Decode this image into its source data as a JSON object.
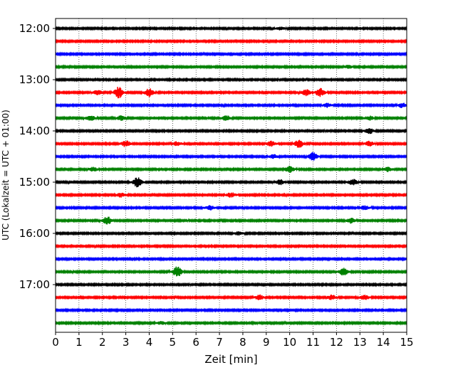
{
  "chart_data": {
    "type": "line",
    "title": "",
    "xlabel": "Zeit  [min]",
    "ylabel": "UTC (Lokalzeit = UTC + 01:00)",
    "xlim": [
      0,
      15
    ],
    "x_ticks": [
      0,
      1,
      2,
      3,
      4,
      5,
      6,
      7,
      8,
      9,
      10,
      11,
      12,
      13,
      14,
      15
    ],
    "x_tick_labels": [
      "0",
      "1",
      "2",
      "3",
      "4",
      "5",
      "6",
      "7",
      "8",
      "9",
      "10",
      "11",
      "12",
      "13",
      "14",
      "15"
    ],
    "y_ticks": [
      "12:00",
      "13:00",
      "14:00",
      "15:00",
      "16:00",
      "17:00"
    ],
    "grid": "vertical dotted",
    "legend": "none",
    "trace_colors": [
      "#000000",
      "#ff0000",
      "#0000ff",
      "#008000"
    ],
    "traces": [
      {
        "start": "12:00",
        "events": [
          [
            9.6,
            0.8
          ]
        ]
      },
      {
        "start": "12:15",
        "events": []
      },
      {
        "start": "12:30",
        "events": []
      },
      {
        "start": "12:45",
        "events": [
          [
            12.5,
            0.8
          ]
        ]
      },
      {
        "start": "13:00",
        "events": []
      },
      {
        "start": "13:15",
        "events": [
          [
            1.8,
            1.4
          ],
          [
            2.7,
            3.5
          ],
          [
            4.0,
            2.5
          ],
          [
            10.7,
            1.8
          ],
          [
            11.3,
            2.6
          ]
        ]
      },
      {
        "start": "13:30",
        "events": [
          [
            11.6,
            1.2
          ],
          [
            14.8,
            1.4
          ]
        ]
      },
      {
        "start": "13:45",
        "events": [
          [
            1.5,
            1.5
          ],
          [
            2.8,
            1.4
          ],
          [
            7.3,
            1.5
          ],
          [
            13.4,
            1.2
          ]
        ]
      },
      {
        "start": "14:00",
        "events": [
          [
            13.4,
            1.6
          ]
        ]
      },
      {
        "start": "14:15",
        "events": [
          [
            3.0,
            2.0
          ],
          [
            5.2,
            1.2
          ],
          [
            9.2,
            1.5
          ],
          [
            10.4,
            2.4
          ],
          [
            13.4,
            1.4
          ]
        ]
      },
      {
        "start": "14:30",
        "events": [
          [
            9.3,
            1.2
          ],
          [
            11.0,
            2.5
          ]
        ]
      },
      {
        "start": "14:45",
        "events": [
          [
            1.6,
            1.3
          ],
          [
            10.0,
            2.0
          ],
          [
            14.2,
            1.2
          ]
        ]
      },
      {
        "start": "15:00",
        "events": [
          [
            3.5,
            3.0
          ],
          [
            9.6,
            1.5
          ],
          [
            12.7,
            1.8
          ]
        ]
      },
      {
        "start": "15:15",
        "events": [
          [
            2.8,
            1.3
          ],
          [
            7.5,
            1.4
          ]
        ]
      },
      {
        "start": "15:30",
        "events": [
          [
            6.6,
            1.2
          ],
          [
            13.2,
            1.2
          ]
        ]
      },
      {
        "start": "15:45",
        "events": [
          [
            2.2,
            2.5
          ],
          [
            12.6,
            1.5
          ]
        ]
      },
      {
        "start": "16:00",
        "events": [
          [
            7.8,
            1.0
          ]
        ]
      },
      {
        "start": "16:15",
        "events": []
      },
      {
        "start": "16:30",
        "events": []
      },
      {
        "start": "16:45",
        "events": [
          [
            5.2,
            3.2
          ],
          [
            12.3,
            2.4
          ]
        ]
      },
      {
        "start": "17:00",
        "events": []
      },
      {
        "start": "17:15",
        "events": [
          [
            8.7,
            1.4
          ],
          [
            11.8,
            1.4
          ],
          [
            13.2,
            1.3
          ]
        ]
      },
      {
        "start": "17:30",
        "events": []
      },
      {
        "start": "17:45",
        "events": [
          [
            4.5,
            0.8
          ]
        ]
      }
    ]
  }
}
